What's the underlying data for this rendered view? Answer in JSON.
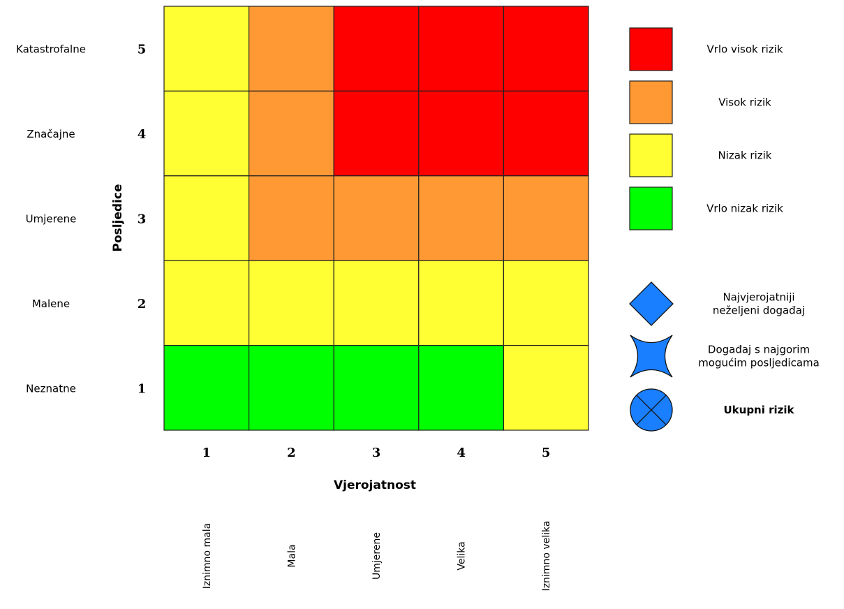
{
  "chart_data": {
    "type": "heatmap",
    "xlabel": "Vjerojatnost",
    "ylabel": "Posljedice",
    "x_levels": [
      1,
      2,
      3,
      4,
      5
    ],
    "y_levels": [
      1,
      2,
      3,
      4,
      5
    ],
    "x_tick_labels": [
      "1",
      "2",
      "3",
      "4",
      "5"
    ],
    "y_tick_labels": [
      "1",
      "2",
      "3",
      "4",
      "5"
    ],
    "x_category_names": [
      "Iznimno mala",
      "Mala",
      "Umjerene",
      "Velika",
      "Iznimno velika"
    ],
    "y_category_names": [
      "Neznatne",
      "Malene",
      "Umjerene",
      "Značajne",
      "Katastrofalne"
    ],
    "risk_levels": {
      "VN": {
        "label": "Vrlo nizak rizik",
        "color": "#00ff00"
      },
      "N": {
        "label": "Nizak rizik",
        "color": "#ffff33"
      },
      "V": {
        "label": "Visok rizik",
        "color": "#ff9933"
      },
      "VV": {
        "label": "Vrlo visok rizik",
        "color": "#ff0000"
      }
    },
    "legend_order": [
      "VV",
      "V",
      "N",
      "VN"
    ],
    "matrix_rows_top_to_bottom": [
      [
        "N",
        "V",
        "VV",
        "VV",
        "VV"
      ],
      [
        "N",
        "V",
        "VV",
        "VV",
        "VV"
      ],
      [
        "N",
        "V",
        "V",
        "V",
        "V"
      ],
      [
        "N",
        "N",
        "N",
        "N",
        "N"
      ],
      [
        "VN",
        "VN",
        "VN",
        "VN",
        "N"
      ]
    ],
    "markers": [
      {
        "icon": "diamond-icon",
        "label_lines": [
          "Najvjerojatniji",
          "neželjeni događaj"
        ],
        "bold": false
      },
      {
        "icon": "concave-star-icon",
        "label_lines": [
          "Događaj s najgorim",
          "mogućim posljedicama"
        ],
        "bold": false
      },
      {
        "icon": "circle-cross-icon",
        "label_lines": [
          "Ukupni rizik"
        ],
        "bold": true
      }
    ],
    "marker_color": "#1a7fff",
    "grid": true,
    "legend_position": "right"
  }
}
